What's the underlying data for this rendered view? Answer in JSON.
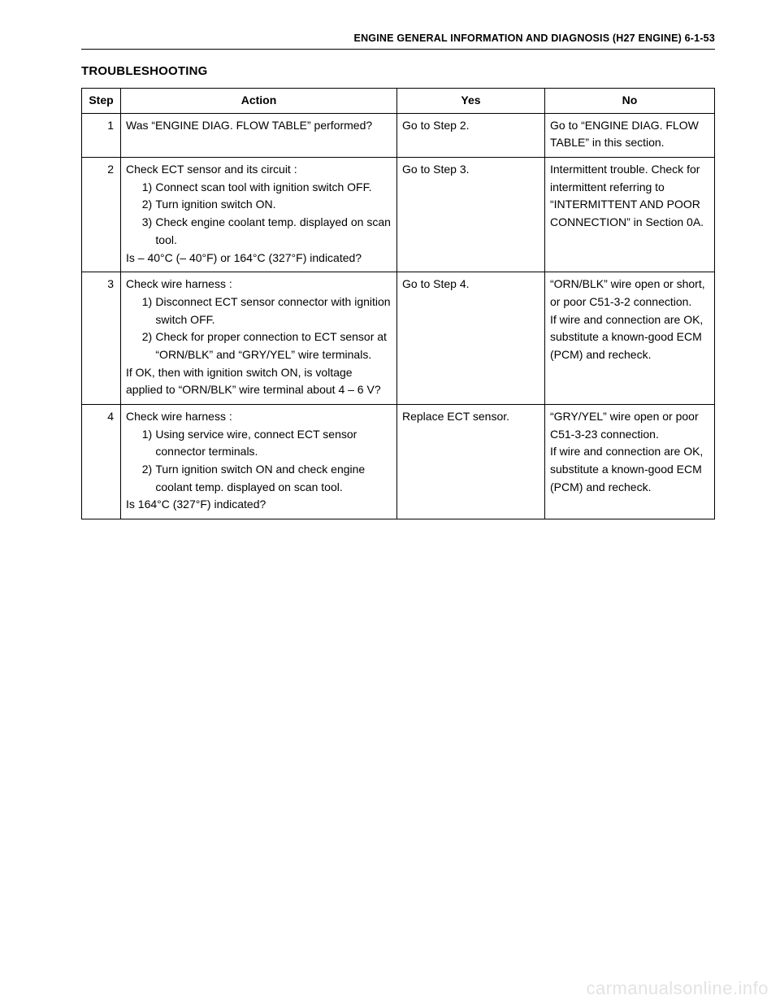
{
  "header": {
    "page_title": "ENGINE GENERAL INFORMATION AND DIAGNOSIS (H27 ENGINE) 6-1-53"
  },
  "section_title": "TROUBLESHOOTING",
  "table": {
    "columns": {
      "step": "Step",
      "action": "Action",
      "yes": "Yes",
      "no": "No"
    },
    "rows": [
      {
        "step": "1",
        "action_intro": "Was “ENGINE DIAG. FLOW TABLE” performed?",
        "action_items": [],
        "action_tail": "",
        "yes": "Go to Step 2.",
        "no": "Go to “ENGINE DIAG. FLOW TABLE” in this section."
      },
      {
        "step": "2",
        "action_intro": "Check ECT sensor and its circuit :",
        "action_items": [
          "Connect scan tool with ignition switch OFF.",
          "Turn ignition switch ON.",
          "Check engine coolant temp. displayed on scan tool."
        ],
        "action_tail": "Is – 40°C (– 40°F) or 164°C (327°F) indicated?",
        "yes": "Go to Step 3.",
        "no": "Intermittent trouble. Check for intermittent referring to “INTERMITTENT AND POOR CONNECTION” in Section 0A."
      },
      {
        "step": "3",
        "action_intro": "Check wire harness :",
        "action_items": [
          "Disconnect ECT sensor connector with ignition switch OFF.",
          "Check for proper connection to ECT sensor at “ORN/BLK” and “GRY/YEL” wire terminals."
        ],
        "action_tail": "If OK, then with ignition switch ON, is voltage applied to “ORN/BLK” wire terminal about 4 – 6 V?",
        "yes": "Go to Step 4.",
        "no": "“ORN/BLK” wire open or short, or poor C51-3-2 connection.\nIf wire and connection are OK, substitute a known-good ECM (PCM) and recheck."
      },
      {
        "step": "4",
        "action_intro": "Check wire harness :",
        "action_items": [
          "Using service wire, connect ECT sensor connector terminals.",
          "Turn ignition switch ON and check engine coolant temp. displayed on scan tool."
        ],
        "action_tail": "Is 164°C (327°F) indicated?",
        "yes": "Replace ECT sensor.",
        "no": "“GRY/YEL” wire open or poor C51-3-23 connection.\nIf wire and connection are OK, substitute a known-good ECM (PCM) and recheck."
      }
    ]
  },
  "watermark": "carmanualsonline.info"
}
